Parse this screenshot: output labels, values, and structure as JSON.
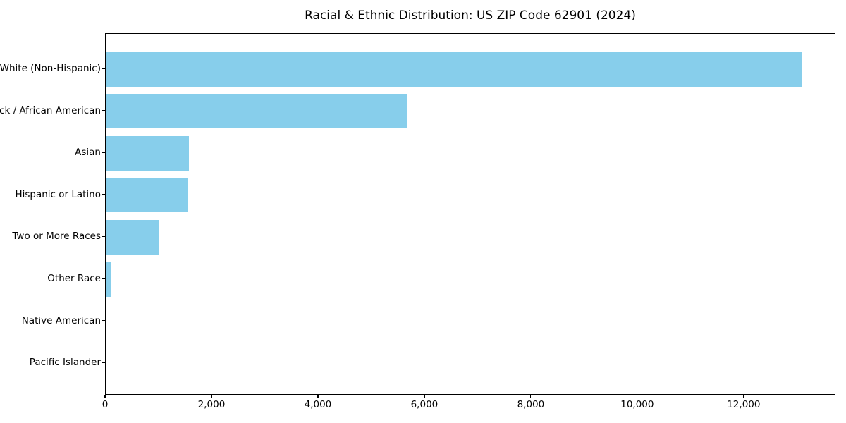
{
  "chart_data": {
    "type": "bar",
    "orientation": "horizontal",
    "title": "Racial & Ethnic Distribution: US ZIP Code 62901 (2024)",
    "categories": [
      "White (Non-Hispanic)",
      "Black / African American",
      "Asian",
      "Hispanic or Latino",
      "Two or More Races",
      "Other Race",
      "Native American",
      "Pacific Islander"
    ],
    "values": [
      13070,
      5665,
      1560,
      1545,
      1005,
      110,
      12,
      4
    ],
    "xlabel": "",
    "ylabel": "",
    "xlim": [
      0,
      13724
    ],
    "xticks": [
      0,
      2000,
      4000,
      6000,
      8000,
      10000,
      12000
    ],
    "xtick_labels": [
      "0",
      "2,000",
      "4,000",
      "6,000",
      "8,000",
      "10,000",
      "12,000"
    ],
    "bar_color": "#87CEEB",
    "axis_color": "#000000",
    "text_color": "#000000",
    "grid": false,
    "legend": null
  }
}
